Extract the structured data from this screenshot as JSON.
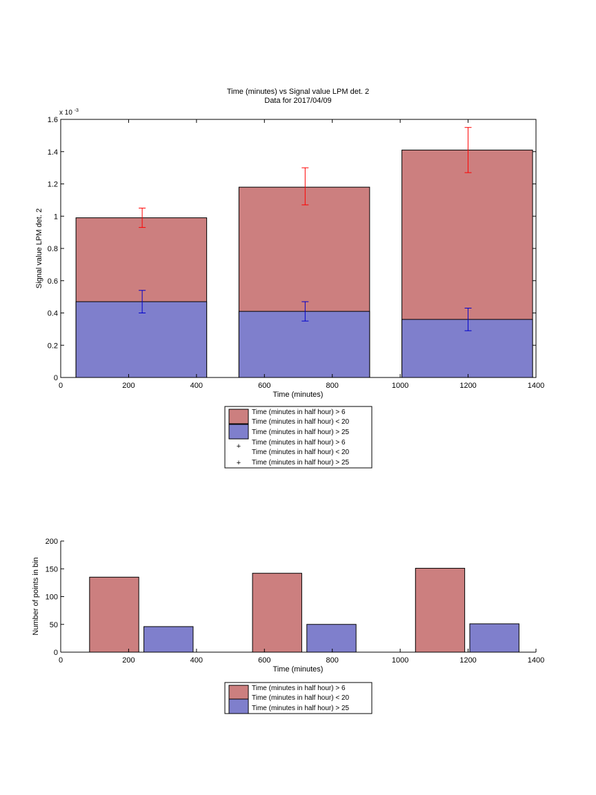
{
  "colors": {
    "red_bar": "#cc7f7f",
    "blue_bar": "#7f7fcc",
    "red_err": "#ff0000",
    "blue_err": "#0000cc",
    "axis": "#000000"
  },
  "top_chart": {
    "title_line1": "Time (minutes) vs Signal value LPM det. 2",
    "title_line2": "Data for 2017/04/09",
    "xlabel": "Time (minutes)",
    "ylabel": "Signal value LPM det. 2",
    "exponent_base": "x 10",
    "exponent_power": "-3",
    "xticks": [
      0,
      200,
      400,
      600,
      800,
      1000,
      1200,
      1400
    ],
    "yticks": [
      "0",
      "0.2",
      "0.4",
      "0.6",
      "0.8",
      "1",
      "1.2",
      "1.4",
      "1.6"
    ],
    "legend": [
      {
        "kind": "box-red",
        "text1": "Time (minutes in half hour) > 6",
        "text2": "Time (minutes in half hour) < 20"
      },
      {
        "kind": "box-blue",
        "text1": "Time (minutes in half hour) > 25"
      },
      {
        "kind": "plus-red",
        "text1": "Time (minutes in half hour) > 6",
        "text2": "Time (minutes in half hour) < 20"
      },
      {
        "kind": "plus-blue",
        "text1": "Time (minutes in half hour) > 25"
      }
    ]
  },
  "bottom_chart": {
    "xlabel": "Time (minutes)",
    "ylabel": "Number of points in bin",
    "xticks": [
      0,
      200,
      400,
      600,
      800,
      1000,
      1200,
      1400
    ],
    "yticks": [
      0,
      50,
      100,
      150,
      200
    ],
    "legend": [
      {
        "kind": "box-red",
        "text1": "Time (minutes in half hour) > 6",
        "text2": "Time (minutes in half hour) < 20"
      },
      {
        "kind": "box-blue",
        "text1": "Time (minutes in half hour) > 25"
      }
    ]
  },
  "chart_data": [
    {
      "type": "bar",
      "stacked": false,
      "title": "Time (minutes) vs Signal value LPM det. 2 / Data for 2017/04/09",
      "xlabel": "Time (minutes)",
      "ylabel": "Signal value LPM det. 2",
      "xlim": [
        0,
        1400
      ],
      "ylim": [
        0,
        0.0016
      ],
      "bins": [
        {
          "x_start": 45,
          "x_end": 430,
          "x_center": 240
        },
        {
          "x_start": 525,
          "x_end": 910,
          "x_center": 720
        },
        {
          "x_start": 1005,
          "x_end": 1390,
          "x_center": 1200
        }
      ],
      "series": [
        {
          "name": "Time (minutes in half hour) > 6 Time (minutes in half hour) < 20",
          "values": [
            0.00099,
            0.00118,
            0.00141
          ],
          "err_low": [
            0.00093,
            0.00107,
            0.00127
          ],
          "err_high": [
            0.00105,
            0.0013,
            0.00155
          ]
        },
        {
          "name": "Time (minutes in half hour) > 25",
          "values": [
            0.00047,
            0.00041,
            0.00036
          ],
          "err_low": [
            0.0004,
            0.00035,
            0.00029
          ],
          "err_high": [
            0.00054,
            0.00047,
            0.00043
          ]
        }
      ],
      "grid": false,
      "legend_position": "below"
    },
    {
      "type": "bar",
      "xlabel": "Time (minutes)",
      "ylabel": "Number of points in bin",
      "xlim": [
        0,
        1400
      ],
      "ylim": [
        0,
        200
      ],
      "bars": [
        {
          "x_start": 85,
          "x_end": 230,
          "value": 135,
          "series": 0
        },
        {
          "x_start": 245,
          "x_end": 390,
          "value": 46,
          "series": 1
        },
        {
          "x_start": 565,
          "x_end": 710,
          "value": 142,
          "series": 0
        },
        {
          "x_start": 725,
          "x_end": 870,
          "value": 50,
          "series": 1
        },
        {
          "x_start": 1045,
          "x_end": 1190,
          "value": 151,
          "series": 0
        },
        {
          "x_start": 1205,
          "x_end": 1350,
          "value": 51,
          "series": 1
        }
      ],
      "series": [
        {
          "name": "Time (minutes in half hour) > 6 Time (minutes in half hour) < 20"
        },
        {
          "name": "Time (minutes in half hour) > 25"
        }
      ],
      "grid": false,
      "legend_position": "below"
    }
  ]
}
